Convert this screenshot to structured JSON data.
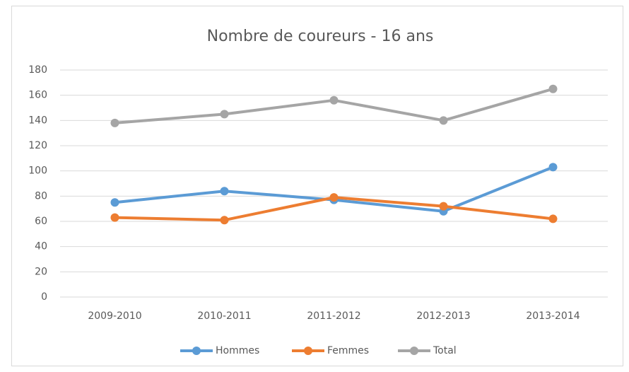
{
  "chart_data": {
    "type": "line",
    "title": "Nombre de coureurs - 16 ans",
    "categories": [
      "2009-2010",
      "2010-2011",
      "2011-2012",
      "2012-2013",
      "2013-2014"
    ],
    "series": [
      {
        "name": "Hommes",
        "color": "#5b9bd5",
        "values": [
          75,
          84,
          77,
          68,
          103
        ]
      },
      {
        "name": "Femmes",
        "color": "#ed7d31",
        "values": [
          63,
          61,
          79,
          72,
          62
        ]
      },
      {
        "name": "Total",
        "color": "#a5a5a5",
        "values": [
          138,
          145,
          156,
          140,
          165
        ]
      }
    ],
    "ylim": [
      0,
      180
    ],
    "yticks": [
      0,
      20,
      40,
      60,
      80,
      100,
      120,
      140,
      160,
      180
    ],
    "grid": true,
    "legend": "bottom"
  }
}
